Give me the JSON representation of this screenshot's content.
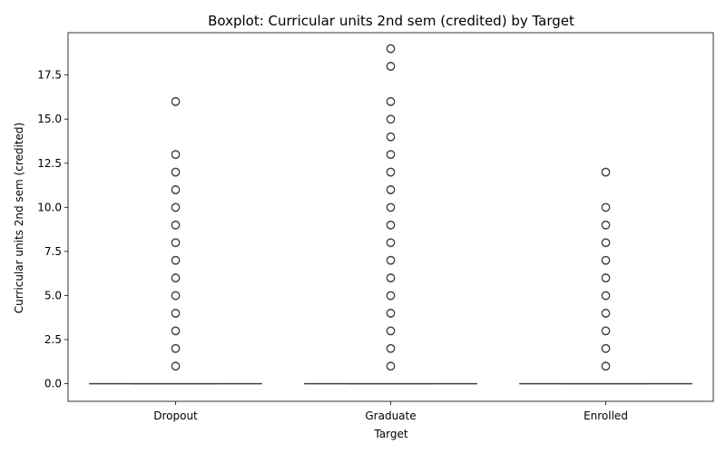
{
  "chart_data": {
    "type": "boxplot",
    "title": "Boxplot: Curricular units 2nd sem (credited) by Target",
    "xlabel": "Target",
    "ylabel": "Curricular units 2nd sem (credited)",
    "categories": [
      "Dropout",
      "Graduate",
      "Enrolled"
    ],
    "ylim": [
      -1,
      19.9
    ],
    "yticks": [
      0.0,
      2.5,
      5.0,
      7.5,
      10.0,
      12.5,
      15.0,
      17.5
    ],
    "ytick_labels": [
      "0.0",
      "2.5",
      "5.0",
      "7.5",
      "10.0",
      "12.5",
      "15.0",
      "17.5"
    ],
    "grid": false,
    "box_color": "#3f3f3f",
    "boxes": [
      {
        "category": "Dropout",
        "min": 0,
        "q1": 0,
        "median": 0,
        "q3": 0,
        "max": 0,
        "outliers": [
          1,
          2,
          3,
          4,
          5,
          6,
          7,
          8,
          9,
          10,
          11,
          12,
          13,
          16
        ]
      },
      {
        "category": "Graduate",
        "min": 0,
        "q1": 0,
        "median": 0,
        "q3": 0,
        "max": 0,
        "outliers": [
          1,
          2,
          3,
          4,
          5,
          6,
          7,
          8,
          9,
          10,
          11,
          12,
          13,
          14,
          15,
          16,
          18,
          19
        ]
      },
      {
        "category": "Enrolled",
        "min": 0,
        "q1": 0,
        "median": 0,
        "q3": 0,
        "max": 0,
        "outliers": [
          1,
          2,
          3,
          4,
          5,
          6,
          7,
          8,
          9,
          10,
          12
        ]
      }
    ]
  }
}
